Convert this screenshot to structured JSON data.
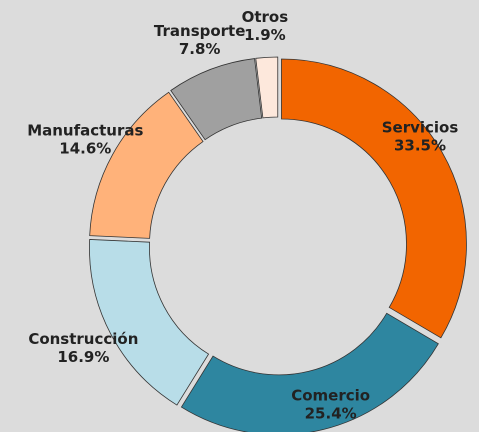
{
  "chart_data": {
    "type": "donut",
    "categories": [
      "Servicios",
      "Comercio",
      "Construcción",
      "Manufacturas",
      "Transporte",
      "Otros"
    ],
    "values": [
      33.5,
      25.4,
      16.9,
      14.6,
      7.8,
      1.9
    ],
    "value_labels": [
      "33.5%",
      "25.4%",
      "16.9%",
      "14.6%",
      "7.8%",
      "1.9%"
    ],
    "colors": [
      "#f26500",
      "#2e86a0",
      "#b8dde8",
      "#ffb27a",
      "#a0a0a0",
      "#fde8dc"
    ]
  }
}
